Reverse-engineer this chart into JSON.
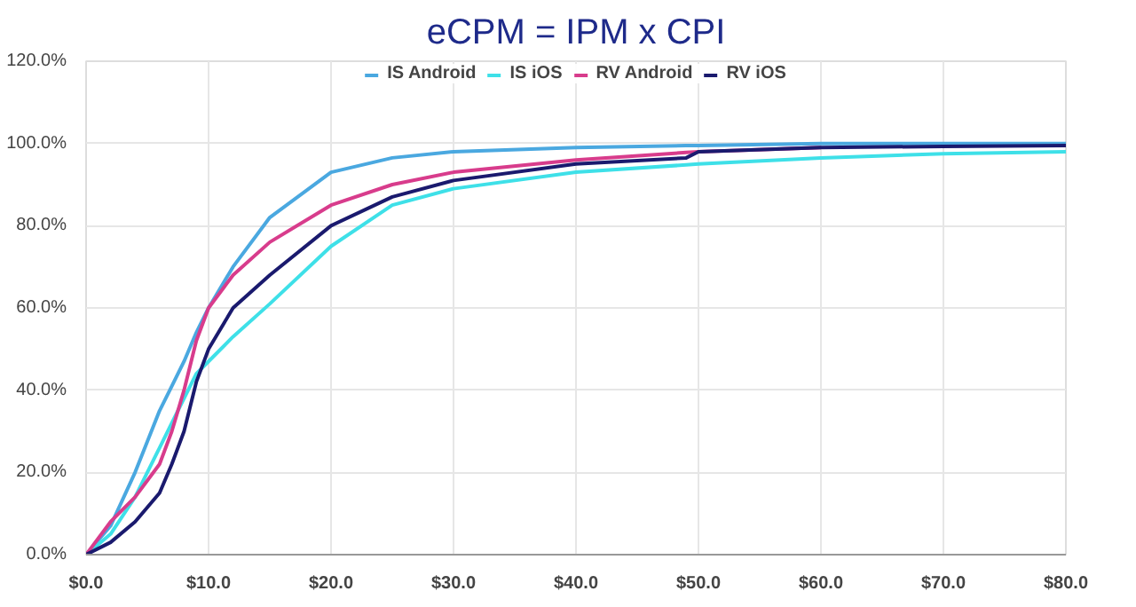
{
  "chart_data": {
    "type": "line",
    "title": "eCPM = IPM x CPI",
    "x": [
      0,
      2,
      4,
      6,
      7,
      8,
      9,
      10,
      12,
      15,
      20,
      25,
      30,
      40,
      49,
      50,
      60,
      70,
      80
    ],
    "series": [
      {
        "name": "IS Android",
        "color": "#4aa8e0",
        "values": [
          0,
          7,
          20,
          35,
          41,
          47,
          54,
          60,
          70,
          82,
          93,
          96.5,
          98,
          99,
          99.5,
          99.5,
          100,
          100,
          100
        ]
      },
      {
        "name": "IS iOS",
        "color": "#3ee0e8",
        "values": [
          0,
          5,
          14,
          26,
          32,
          38,
          44,
          47,
          53,
          61,
          75,
          85,
          89,
          93,
          94.8,
          95,
          96.5,
          97.5,
          98
        ]
      },
      {
        "name": "RV Android",
        "color": "#d83c8c",
        "values": [
          0,
          8,
          14,
          22,
          30,
          40,
          52,
          60,
          68,
          76,
          85,
          90,
          93,
          96,
          97.8,
          98,
          99,
          null,
          null
        ]
      },
      {
        "name": "RV iOS",
        "color": "#1a1a6e",
        "values": [
          0,
          3,
          8,
          15,
          22,
          30,
          42,
          50,
          60,
          68,
          80,
          87,
          91,
          95,
          96.5,
          98,
          99,
          99.3,
          99.5
        ]
      }
    ],
    "xlim": [
      0,
      80
    ],
    "ylim": [
      0,
      120
    ],
    "xticks": [
      {
        "value": 0,
        "label": "$0.0"
      },
      {
        "value": 10,
        "label": "$10.0"
      },
      {
        "value": 20,
        "label": "$20.0"
      },
      {
        "value": 30,
        "label": "$30.0"
      },
      {
        "value": 40,
        "label": "$40.0"
      },
      {
        "value": 50,
        "label": "$50.0"
      },
      {
        "value": 60,
        "label": "$60.0"
      },
      {
        "value": 70,
        "label": "$70.0"
      },
      {
        "value": 80,
        "label": "$80.0"
      }
    ],
    "yticks": [
      {
        "value": 0,
        "label": "0.0%"
      },
      {
        "value": 20,
        "label": "20.0%"
      },
      {
        "value": 40,
        "label": "40.0%"
      },
      {
        "value": 60,
        "label": "60.0%"
      },
      {
        "value": 80,
        "label": "80.0%"
      },
      {
        "value": 100,
        "label": "100.0%"
      },
      {
        "value": 120,
        "label": "120.0%"
      }
    ],
    "grid": true,
    "legend": "top",
    "marker": "none",
    "line_style": "solid"
  }
}
